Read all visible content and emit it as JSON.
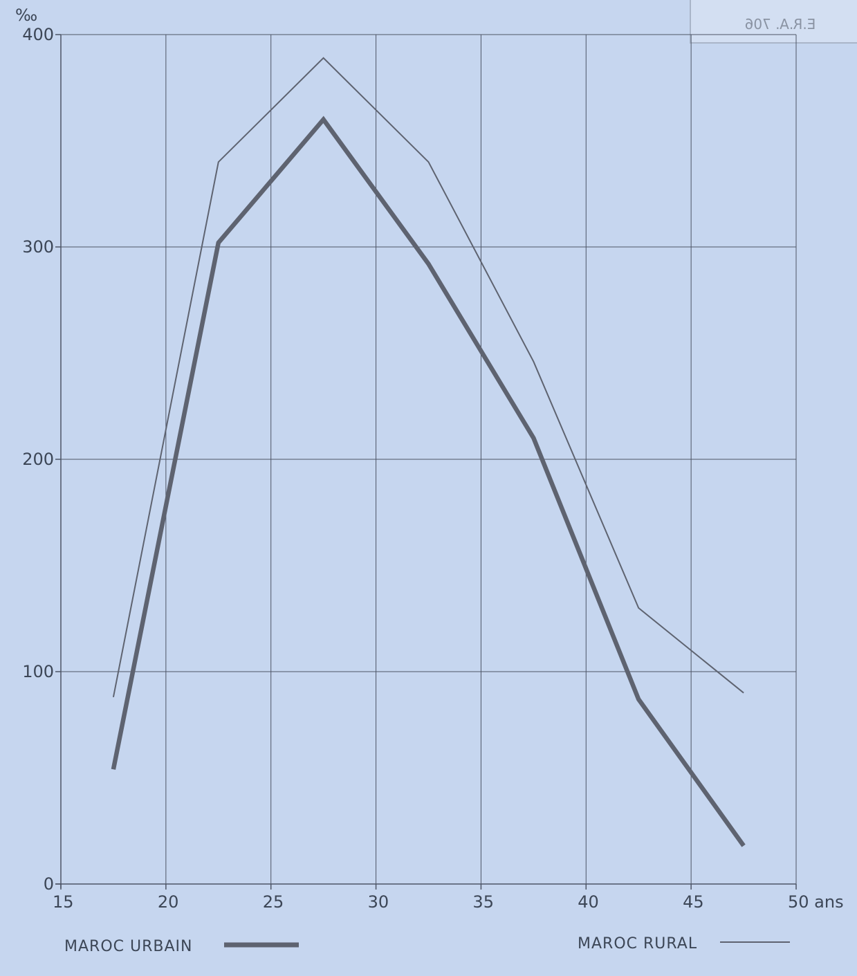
{
  "chart_data": {
    "type": "line",
    "x": [
      17.5,
      22.5,
      27.5,
      32.5,
      37.5,
      42.5,
      47.5
    ],
    "xlim": [
      15,
      50
    ],
    "ylim": [
      0,
      400
    ],
    "x_ticks": [
      15,
      20,
      25,
      30,
      35,
      40,
      45,
      50
    ],
    "y_ticks": [
      0,
      100,
      200,
      300,
      400
    ],
    "x_tick_labels": [
      "15",
      "20",
      "25",
      "30",
      "35",
      "40",
      "45",
      "50 ans"
    ],
    "y_tick_labels": [
      "0",
      "100",
      "200",
      "300",
      "400"
    ],
    "y_unit": "‰",
    "grid": true,
    "series": [
      {
        "name": "MAROC URBAIN",
        "values": [
          54,
          302,
          360,
          292,
          210,
          87,
          18
        ],
        "color": "#5e6370",
        "style": "thick"
      },
      {
        "name": "MAROC RURAL",
        "values": [
          88,
          340,
          389,
          340,
          246,
          130,
          90
        ],
        "color": "#5e6370",
        "style": "thin"
      }
    ],
    "legend": [
      {
        "label": "MAROC URBAIN",
        "position": "bottom-left"
      },
      {
        "label": "MAROC RURAL",
        "position": "bottom-right"
      }
    ]
  },
  "stamp": {
    "text": "E.R.A. 706"
  }
}
